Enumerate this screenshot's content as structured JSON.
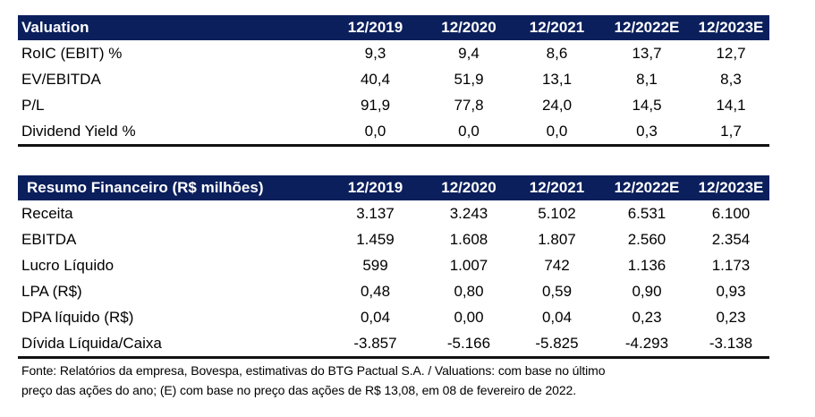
{
  "valuation": {
    "headers": [
      "Valuation",
      "12/2019",
      "12/2020",
      "12/2021",
      "12/2022E",
      "12/2023E"
    ],
    "rows": [
      [
        "RoIC (EBIT) %",
        "9,3",
        "9,4",
        "8,6",
        "13,7",
        "12,7"
      ],
      [
        "EV/EBITDA",
        "40,4",
        "51,9",
        "13,1",
        "8,1",
        "8,3"
      ],
      [
        "P/L",
        "91,9",
        "77,8",
        "24,0",
        "14,5",
        "14,1"
      ],
      [
        "Dividend Yield %",
        "0,0",
        "0,0",
        "0,0",
        "0,3",
        "1,7"
      ]
    ]
  },
  "resumo": {
    "headers": [
      "Resumo Financeiro (R$ milhões)",
      "12/2019",
      "12/2020",
      "12/2021",
      "12/2022E",
      "12/2023E"
    ],
    "rows": [
      [
        "Receita",
        "3.137",
        "3.243",
        "5.102",
        "6.531",
        "6.100"
      ],
      [
        "EBITDA",
        "1.459",
        "1.608",
        "1.807",
        "2.560",
        "2.354"
      ],
      [
        "Lucro Líquido",
        "599",
        "1.007",
        "742",
        "1.136",
        "1.173"
      ],
      [
        "LPA (R$)",
        "0,48",
        "0,80",
        "0,59",
        "0,90",
        "0,93"
      ],
      [
        "DPA líquido (R$)",
        "0,04",
        "0,00",
        "0,04",
        "0,23",
        "0,23"
      ],
      [
        "Dívida Líquida/Caixa",
        "-3.857",
        "-5.166",
        "-5.825",
        "-4.293",
        "-3.138"
      ]
    ]
  },
  "footnote": {
    "line1": "Fonte: Relatórios da empresa, Bovespa, estimativas do BTG Pactual S.A. / Valuations: com base no último",
    "line2": "preço das ações do ano; (E) com base no preço das ações de R$ 13,08, em 08 de fevereiro de 2022."
  }
}
